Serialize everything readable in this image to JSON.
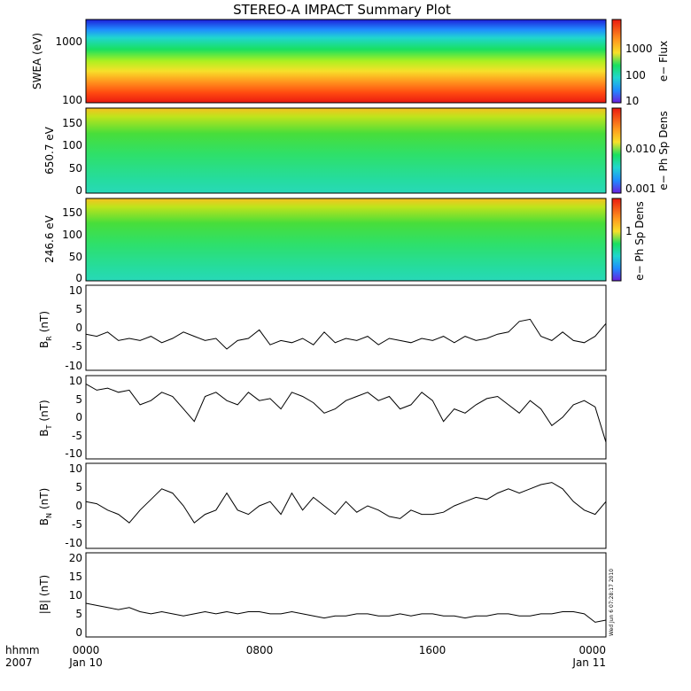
{
  "colors": {
    "frame": "#000000",
    "trace": "#000000",
    "background": "#ffffff"
  },
  "chart_data": {
    "type": "multi-panel time series",
    "title": "STEREO-A IMPACT Summary Plot",
    "x": {
      "row1_label": "hhmm",
      "row2_label": "2007",
      "range": [
        "2007-01-10 00:00",
        "2007-01-11 00:00"
      ],
      "ticks": [
        {
          "hhmm": "0000",
          "date": "Jan 10"
        },
        {
          "hhmm": "0800",
          "date": ""
        },
        {
          "hhmm": "1600",
          "date": ""
        },
        {
          "hhmm": "0000",
          "date": "Jan 11"
        }
      ]
    },
    "stamp": "Wed Jun  6 07:28:17 2010",
    "panels": [
      {
        "id": "swea",
        "type": "heatmap",
        "ylabel": "SWEA (eV)",
        "yscale": "log",
        "ylim": [
          100,
          2000
        ],
        "yticks": [
          "1000",
          "100"
        ],
        "colorbar": {
          "label": "e− Flux",
          "scale": "log",
          "ticks": [
            "1000",
            "100",
            "10"
          ]
        }
      },
      {
        "id": "pad650",
        "type": "heatmap",
        "ylabel": "650.7 eV",
        "ylim": [
          0,
          180
        ],
        "yticks": [
          "150",
          "100",
          "50",
          "0"
        ],
        "colorbar": {
          "label": "e− Ph Sp Dens",
          "scale": "log",
          "ticks": [
            "0.010",
            "0.001"
          ]
        }
      },
      {
        "id": "pad246",
        "type": "heatmap",
        "ylabel": "246.6 eV",
        "ylim": [
          0,
          180
        ],
        "yticks": [
          "150",
          "100",
          "50",
          "0"
        ],
        "colorbar": {
          "label": "e− Ph Sp Dens",
          "scale": "log",
          "ticks": [
            "1"
          ]
        }
      },
      {
        "id": "br",
        "type": "line",
        "ylabel": "B",
        "ysub": "R",
        "yunit": "(nT)",
        "ylim": [
          -10,
          10
        ],
        "yticks": [
          "10",
          "5",
          "0",
          "-5",
          "-10"
        ],
        "hours": [
          0,
          0.5,
          1,
          1.5,
          2,
          2.5,
          3,
          3.5,
          4,
          4.5,
          5,
          5.5,
          6,
          6.5,
          7,
          7.5,
          8,
          8.5,
          9,
          9.5,
          10,
          10.5,
          11,
          11.5,
          12,
          12.5,
          13,
          13.5,
          14,
          14.5,
          15,
          15.5,
          16,
          16.5,
          17,
          17.5,
          18,
          18.5,
          19,
          19.5,
          20,
          20.5,
          21,
          21.5,
          22,
          22.5,
          23,
          23.5,
          24
        ],
        "values": [
          -1.5,
          -2,
          -1,
          -3,
          -2.5,
          -3,
          -2,
          -3.5,
          -2.5,
          -1,
          -2,
          -3,
          -2.5,
          -5,
          -3,
          -2.5,
          -0.5,
          -4,
          -3,
          -3.5,
          -2.5,
          -4,
          -1,
          -3.5,
          -2.5,
          -3,
          -2,
          -4,
          -2.5,
          -3,
          -3.5,
          -2.5,
          -3,
          -2,
          -3.5,
          -2,
          -3,
          -2.5,
          -1.5,
          -1,
          1.5,
          2,
          -2,
          -3,
          -1,
          -3,
          -3.5,
          -2,
          1
        ]
      },
      {
        "id": "bt",
        "type": "line",
        "ylabel": "B",
        "ysub": "T",
        "yunit": "(nT)",
        "ylim": [
          -10,
          10
        ],
        "yticks": [
          "10",
          "5",
          "0",
          "-5",
          "-10"
        ],
        "hours": [
          0,
          0.5,
          1,
          1.5,
          2,
          2.5,
          3,
          3.5,
          4,
          4.5,
          5,
          5.5,
          6,
          6.5,
          7,
          7.5,
          8,
          8.5,
          9,
          9.5,
          10,
          10.5,
          11,
          11.5,
          12,
          12.5,
          13,
          13.5,
          14,
          14.5,
          15,
          15.5,
          16,
          16.5,
          17,
          17.5,
          18,
          18.5,
          19,
          19.5,
          20,
          20.5,
          21,
          21.5,
          22,
          22.5,
          23,
          23.5,
          24
        ],
        "values": [
          8,
          6.5,
          7,
          6,
          6.5,
          3,
          4,
          6,
          5,
          2,
          -1,
          5,
          6,
          4,
          3,
          6,
          4,
          4.5,
          2,
          6,
          5,
          3.5,
          1,
          2,
          4,
          5,
          6,
          4,
          5,
          2,
          3,
          6,
          4,
          -1,
          2,
          1,
          3,
          4.5,
          5,
          3,
          1,
          4,
          2,
          -2,
          0,
          3,
          4,
          2.5,
          -6
        ]
      },
      {
        "id": "bn",
        "type": "line",
        "ylabel": "B",
        "ysub": "N",
        "yunit": "(nT)",
        "ylim": [
          -10,
          10
        ],
        "yticks": [
          "10",
          "5",
          "0",
          "-5",
          "-10"
        ],
        "hours": [
          0,
          0.5,
          1,
          1.5,
          2,
          2.5,
          3,
          3.5,
          4,
          4.5,
          5,
          5.5,
          6,
          6.5,
          7,
          7.5,
          8,
          8.5,
          9,
          9.5,
          10,
          10.5,
          11,
          11.5,
          12,
          12.5,
          13,
          13.5,
          14,
          14.5,
          15,
          15.5,
          16,
          16.5,
          17,
          17.5,
          18,
          18.5,
          19,
          19.5,
          20,
          20.5,
          21,
          21.5,
          22,
          22.5,
          23,
          23.5,
          24
        ],
        "values": [
          1,
          0.5,
          -1,
          -2,
          -4,
          -1,
          1.5,
          4,
          3,
          0,
          -4,
          -2,
          -1,
          3,
          -1,
          -2,
          0,
          1,
          -2,
          3,
          -1,
          2,
          0,
          -2,
          1,
          -1.5,
          0,
          -1,
          -2.5,
          -3,
          -1,
          -2,
          -2,
          -1.5,
          0,
          1,
          2,
          1.5,
          3,
          4,
          3,
          4,
          5,
          5.5,
          4,
          1,
          -1,
          -2,
          1
        ]
      },
      {
        "id": "bmag",
        "type": "line",
        "ylabel": "|B| (nT)",
        "ylim": [
          0,
          20
        ],
        "yticks": [
          "20",
          "15",
          "10",
          "5",
          "0"
        ],
        "hours": [
          0,
          0.5,
          1,
          1.5,
          2,
          2.5,
          3,
          3.5,
          4,
          4.5,
          5,
          5.5,
          6,
          6.5,
          7,
          7.5,
          8,
          8.5,
          9,
          9.5,
          10,
          10.5,
          11,
          11.5,
          12,
          12.5,
          13,
          13.5,
          14,
          14.5,
          15,
          15.5,
          16,
          16.5,
          17,
          17.5,
          18,
          18.5,
          19,
          19.5,
          20,
          20.5,
          21,
          21.5,
          22,
          22.5,
          23,
          23.5,
          24
        ],
        "values": [
          8,
          7.5,
          7,
          6.5,
          7,
          6,
          5.5,
          6,
          5.5,
          5,
          5.5,
          6,
          5.5,
          6,
          5.5,
          6,
          6,
          5.5,
          5.5,
          6,
          5.5,
          5,
          4.5,
          5,
          5,
          5.5,
          5.5,
          5,
          5,
          5.5,
          5,
          5.5,
          5.5,
          5,
          5,
          4.5,
          5,
          5,
          5.5,
          5.5,
          5,
          5,
          5.5,
          5.5,
          6,
          6,
          5.5,
          3.5,
          4
        ]
      }
    ]
  }
}
